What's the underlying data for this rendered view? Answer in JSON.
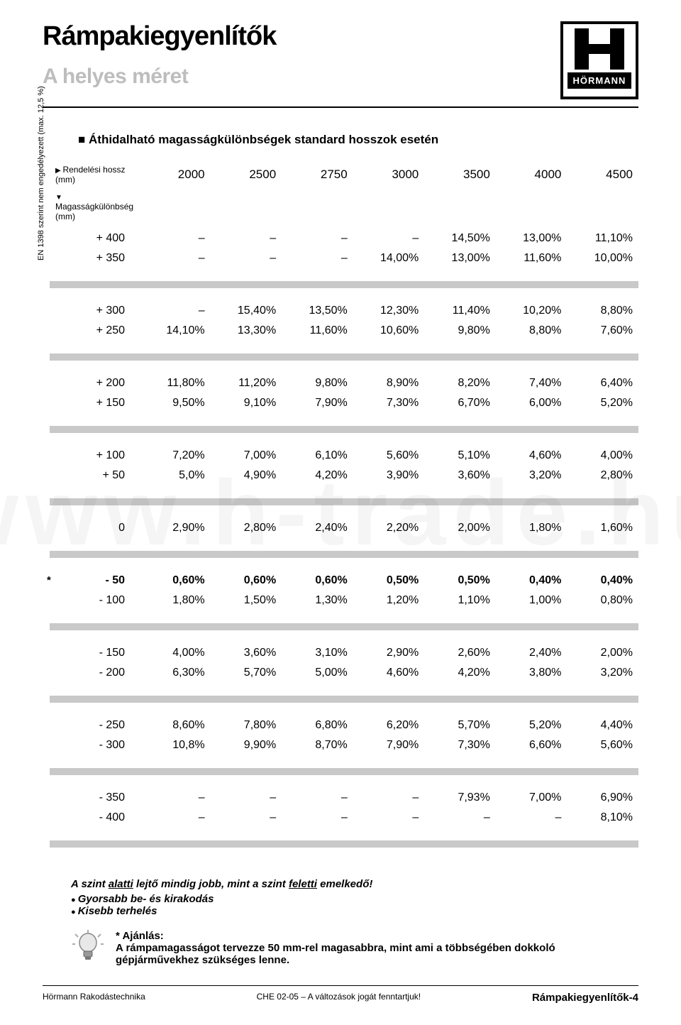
{
  "header": {
    "title": "Rámpakiegyenlítők",
    "subtitle": "A helyes méret",
    "logo_text": "HÖRMANN"
  },
  "section_title": "Áthidalható magasságkülönbségek standard hosszok esetén",
  "side_label": "EN 1398 szerint nem engedélyezett (max. 12,5 %)",
  "table": {
    "row1_label": "Rendelési hossz (mm)",
    "row2_label": "Magasságkülönbség (mm)",
    "lengths": [
      "2000",
      "2500",
      "2750",
      "3000",
      "3500",
      "4000",
      "4500"
    ],
    "groups": [
      [
        {
          "label": "+ 400",
          "v": [
            "–",
            "–",
            "–",
            "–",
            "14,50%",
            "13,00%",
            "11,10%"
          ]
        },
        {
          "label": "+ 350",
          "v": [
            "–",
            "–",
            "–",
            "14,00%",
            "13,00%",
            "11,60%",
            "10,00%"
          ]
        }
      ],
      [
        {
          "label": "+ 300",
          "v": [
            "–",
            "15,40%",
            "13,50%",
            "12,30%",
            "11,40%",
            "10,20%",
            "8,80%"
          ]
        },
        {
          "label": "+ 250",
          "v": [
            "14,10%",
            "13,30%",
            "11,60%",
            "10,60%",
            "9,80%",
            "8,80%",
            "7,60%"
          ]
        }
      ],
      [
        {
          "label": "+ 200",
          "v": [
            "11,80%",
            "11,20%",
            "9,80%",
            "8,90%",
            "8,20%",
            "7,40%",
            "6,40%"
          ]
        },
        {
          "label": "+ 150",
          "v": [
            "9,50%",
            "9,10%",
            "7,90%",
            "7,30%",
            "6,70%",
            "6,00%",
            "5,20%"
          ]
        }
      ],
      [
        {
          "label": "+ 100",
          "v": [
            "7,20%",
            "7,00%",
            "6,10%",
            "5,60%",
            "5,10%",
            "4,60%",
            "4,00%"
          ]
        },
        {
          "label": "+ 50",
          "v": [
            "5,0%",
            "4,90%",
            "4,20%",
            "3,90%",
            "3,60%",
            "3,20%",
            "2,80%"
          ]
        }
      ],
      [
        {
          "label": "0",
          "v": [
            "2,90%",
            "2,80%",
            "2,40%",
            "2,20%",
            "2,00%",
            "1,80%",
            "1,60%"
          ]
        }
      ],
      [
        {
          "label": "- 50",
          "v": [
            "0,60%",
            "0,60%",
            "0,60%",
            "0,50%",
            "0,50%",
            "0,40%",
            "0,40%"
          ],
          "bold": true,
          "star": true
        },
        {
          "label": "- 100",
          "v": [
            "1,80%",
            "1,50%",
            "1,30%",
            "1,20%",
            "1,10%",
            "1,00%",
            "0,80%"
          ]
        }
      ],
      [
        {
          "label": "- 150",
          "v": [
            "4,00%",
            "3,60%",
            "3,10%",
            "2,90%",
            "2,60%",
            "2,40%",
            "2,00%"
          ]
        },
        {
          "label": "- 200",
          "v": [
            "6,30%",
            "5,70%",
            "5,00%",
            "4,60%",
            "4,20%",
            "3,80%",
            "3,20%"
          ]
        }
      ],
      [
        {
          "label": "- 250",
          "v": [
            "8,60%",
            "7,80%",
            "6,80%",
            "6,20%",
            "5,70%",
            "5,20%",
            "4,40%"
          ]
        },
        {
          "label": "- 300",
          "v": [
            "10,8%",
            "9,90%",
            "8,70%",
            "7,90%",
            "7,30%",
            "6,60%",
            "5,60%"
          ]
        }
      ],
      [
        {
          "label": "- 350",
          "v": [
            "–",
            "–",
            "–",
            "–",
            "7,93%",
            "7,00%",
            "6,90%"
          ]
        },
        {
          "label": "- 400",
          "v": [
            "–",
            "–",
            "–",
            "–",
            "–",
            "–",
            "8,10%"
          ]
        }
      ]
    ]
  },
  "notes": {
    "headline_pre": "A szint ",
    "headline_u1": "alatti",
    "headline_mid": " lejtő mindig jobb, mint a szint ",
    "headline_u2": "feletti",
    "headline_post": " emelkedő!",
    "bullets": [
      "Gyorsabb be- és kirakodás",
      "Kisebb terhelés"
    ],
    "tip_label": "* Ajánlás:",
    "tip_text": "A rámpamagasságot tervezze 50 mm-rel magasabbra, mint ami a többségében dokkoló gépjárművekhez szükséges lenne."
  },
  "footer": {
    "left": "Hörmann Rakodástechnika",
    "center": "CHE 02-05 – A változások jogát fenntartjuk!",
    "right": "Rámpakiegyenlítők-4"
  },
  "watermark": "www.h-trade.hu"
}
